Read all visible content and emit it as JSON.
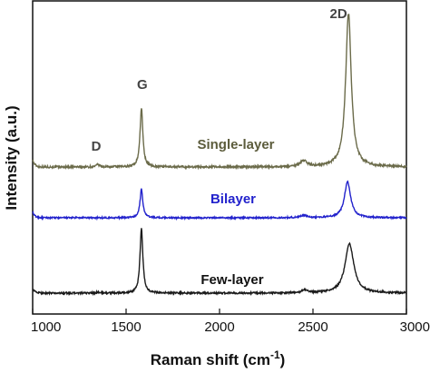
{
  "chart_data": {
    "type": "line",
    "xlabel": "Raman shift (cm",
    "xlabel_sup": "-1",
    "xlabel_close": ")",
    "ylabel": "Intensity (a.u.)",
    "xlim": [
      1000,
      3000
    ],
    "xticks": [
      "1000",
      "1500",
      "2000",
      "2500",
      "3000"
    ],
    "grid": false,
    "peak_labels": [
      {
        "text": "D",
        "x": 1350
      },
      {
        "text": "G",
        "x": 1582
      },
      {
        "text": "2D",
        "x": 2690
      }
    ],
    "series": [
      {
        "name": "Single-layer",
        "color": "#6b6b4a",
        "baseline": 0.0,
        "start_rise": 0.06,
        "peaks": [
          {
            "center": 1350,
            "height": 0.02,
            "width": 10
          },
          {
            "center": 1582,
            "height": 0.5,
            "width": 9
          },
          {
            "center": 2450,
            "height": 0.05,
            "width": 22
          },
          {
            "center": 2690,
            "height": 1.3,
            "width": 18
          }
        ]
      },
      {
        "name": "Bilayer",
        "color": "#2222cc",
        "baseline": 0.0,
        "start_rise": 0.07,
        "peaks": [
          {
            "center": 1582,
            "height": 0.35,
            "width": 9
          },
          {
            "center": 2450,
            "height": 0.03,
            "width": 20
          },
          {
            "center": 2685,
            "height": 0.44,
            "width": 20
          }
        ]
      },
      {
        "name": "Few-layer",
        "color": "#1a1a1a",
        "baseline": 0.0,
        "start_rise": 0.05,
        "peaks": [
          {
            "center": 1350,
            "height": 0.01,
            "width": 10
          },
          {
            "center": 1582,
            "height": 0.68,
            "width": 9
          },
          {
            "center": 2455,
            "height": 0.03,
            "width": 20
          },
          {
            "center": 2695,
            "height": 0.52,
            "width": 28
          }
        ]
      }
    ]
  }
}
